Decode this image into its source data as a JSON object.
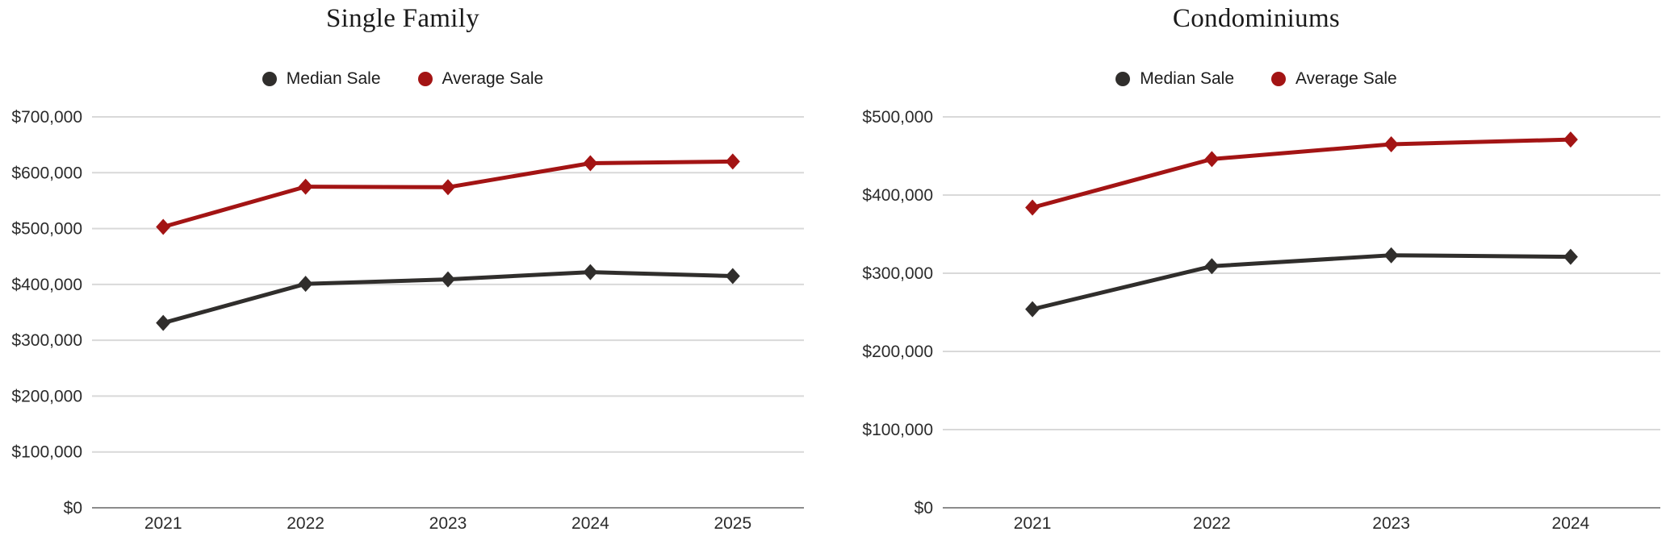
{
  "page": {
    "background": "#FFFFFF"
  },
  "colors": {
    "median": "#302E2C",
    "average": "#A31414",
    "grid": "#D9D9D9",
    "axis": "#8C8C8C",
    "tick_label": "#2B2B2B",
    "title": "#1A1A1A"
  },
  "chart_data": [
    {
      "type": "line",
      "title": "Single Family",
      "categories": [
        "2021",
        "2022",
        "2023",
        "2024",
        "2025"
      ],
      "series": [
        {
          "name": "Median Sale",
          "color_key": "median",
          "values": [
            331000,
            401000,
            409000,
            422000,
            415000
          ]
        },
        {
          "name": "Average Sale",
          "color_key": "average",
          "values": [
            503000,
            575000,
            574000,
            617000,
            620000
          ]
        }
      ],
      "ylim": [
        0,
        700000
      ],
      "ytick_step": 100000,
      "ytick_labels": [
        "$0",
        "$100,000",
        "$200,000",
        "$300,000",
        "$400,000",
        "$500,000",
        "$600,000",
        "$700,000"
      ],
      "ytick_format": "usd",
      "grid": true,
      "legend_position": "top",
      "marker": "diamond"
    },
    {
      "type": "line",
      "title": "Condominiums",
      "categories": [
        "2021",
        "2022",
        "2023",
        "2024"
      ],
      "series": [
        {
          "name": "Median Sale",
          "color_key": "median",
          "values": [
            254000,
            309000,
            323000,
            321000
          ]
        },
        {
          "name": "Average Sale",
          "color_key": "average",
          "values": [
            384000,
            446000,
            465000,
            471000
          ]
        }
      ],
      "ylim": [
        0,
        500000
      ],
      "ytick_step": 100000,
      "ytick_labels": [
        "$0",
        "$100,000",
        "$200,000",
        "$300,000",
        "$400,000",
        "$500,000"
      ],
      "ytick_format": "usd",
      "grid": true,
      "legend_position": "top",
      "marker": "diamond"
    }
  ]
}
